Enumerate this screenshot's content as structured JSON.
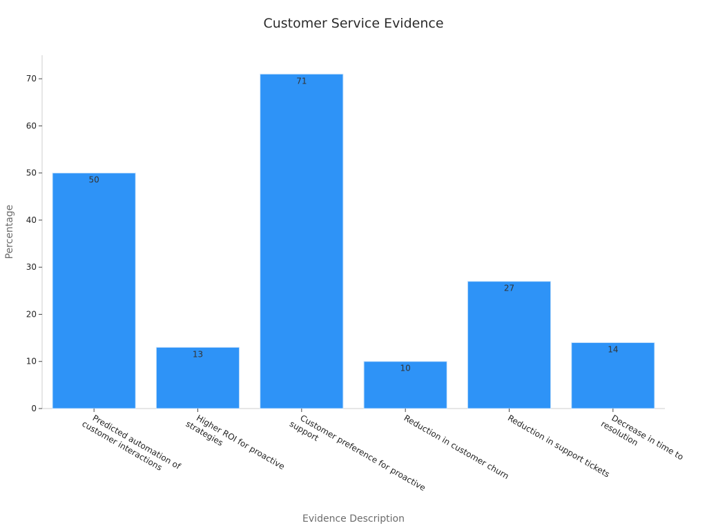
{
  "chart_data": {
    "type": "bar",
    "title": "Customer Service Evidence",
    "xlabel": "Evidence Description",
    "ylabel": "Percentage",
    "categories": [
      [
        "Predicted automation of",
        "customer interactions"
      ],
      [
        "Higher ROI for proactive",
        "strategies"
      ],
      [
        "Customer preference for proactive",
        "support"
      ],
      [
        "Reduction in customer churn"
      ],
      [
        "Reduction in support tickets"
      ],
      [
        "Decrease in time to",
        "resolution"
      ]
    ],
    "values": [
      50,
      13,
      71,
      10,
      27,
      14
    ],
    "ylim": [
      0,
      75
    ],
    "yticks": [
      0,
      10,
      20,
      30,
      40,
      50,
      60,
      70
    ],
    "grid": false,
    "legend": "none",
    "bar_color": "#2e93f7",
    "bar_edge_color": "#d0e6fb"
  }
}
